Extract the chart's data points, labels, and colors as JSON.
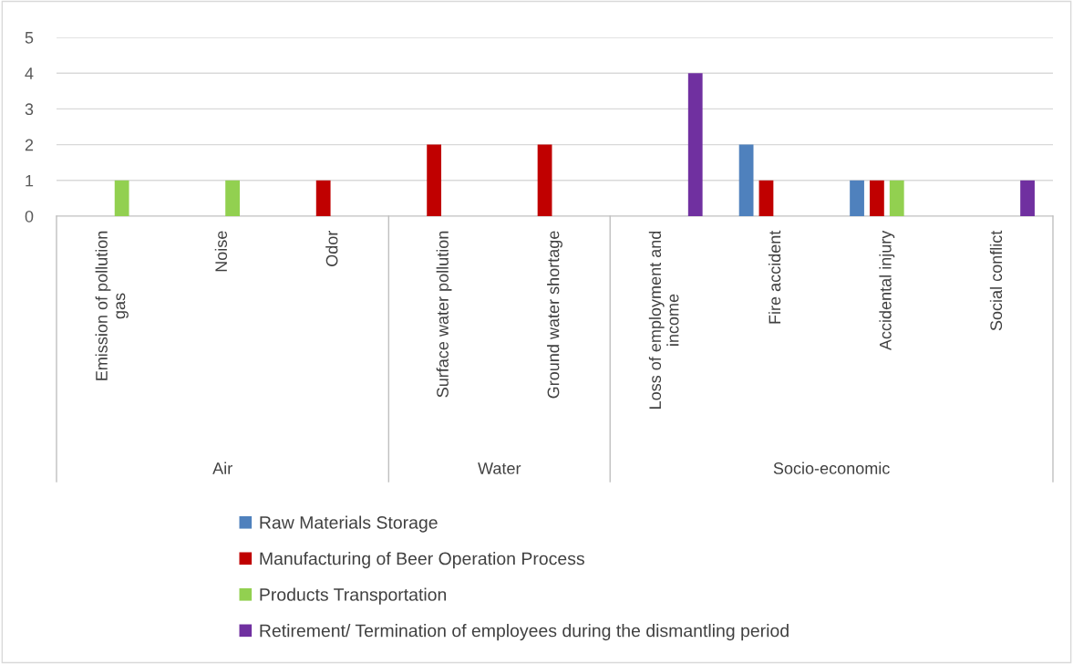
{
  "chart_data": {
    "type": "bar",
    "categories": [
      "Emission of pollution gas",
      "Noise",
      "Odor",
      "Surface water pollution",
      "Ground water shortage",
      "Loss of employment and income",
      "Fire accident",
      "Accidental injury",
      "Social conflict"
    ],
    "series": [
      {
        "name": "Raw Materials Storage",
        "color": "#4f81bd",
        "values": [
          0,
          0,
          0,
          0,
          0,
          0,
          2,
          1,
          0
        ]
      },
      {
        "name": "Manufacturing of Beer Operation Process",
        "color": "#c00000",
        "values": [
          0,
          0,
          1,
          2,
          2,
          0,
          1,
          1,
          0
        ]
      },
      {
        "name": "Products Transportation",
        "color": "#92d050",
        "values": [
          1,
          1,
          0,
          0,
          0,
          0,
          0,
          1,
          0
        ]
      },
      {
        "name": "Retirement/ Termination of employees during the dismantling period",
        "color": "#7030a0",
        "values": [
          0,
          0,
          0,
          0,
          0,
          4,
          0,
          0,
          1
        ]
      }
    ],
    "annotations": [
      "Air",
      "Water",
      "Socio-economic"
    ],
    "ylim": [
      0,
      5
    ],
    "yticks": [
      0,
      1,
      2,
      3,
      4,
      5
    ],
    "grid": "y",
    "legend": "bottom"
  }
}
